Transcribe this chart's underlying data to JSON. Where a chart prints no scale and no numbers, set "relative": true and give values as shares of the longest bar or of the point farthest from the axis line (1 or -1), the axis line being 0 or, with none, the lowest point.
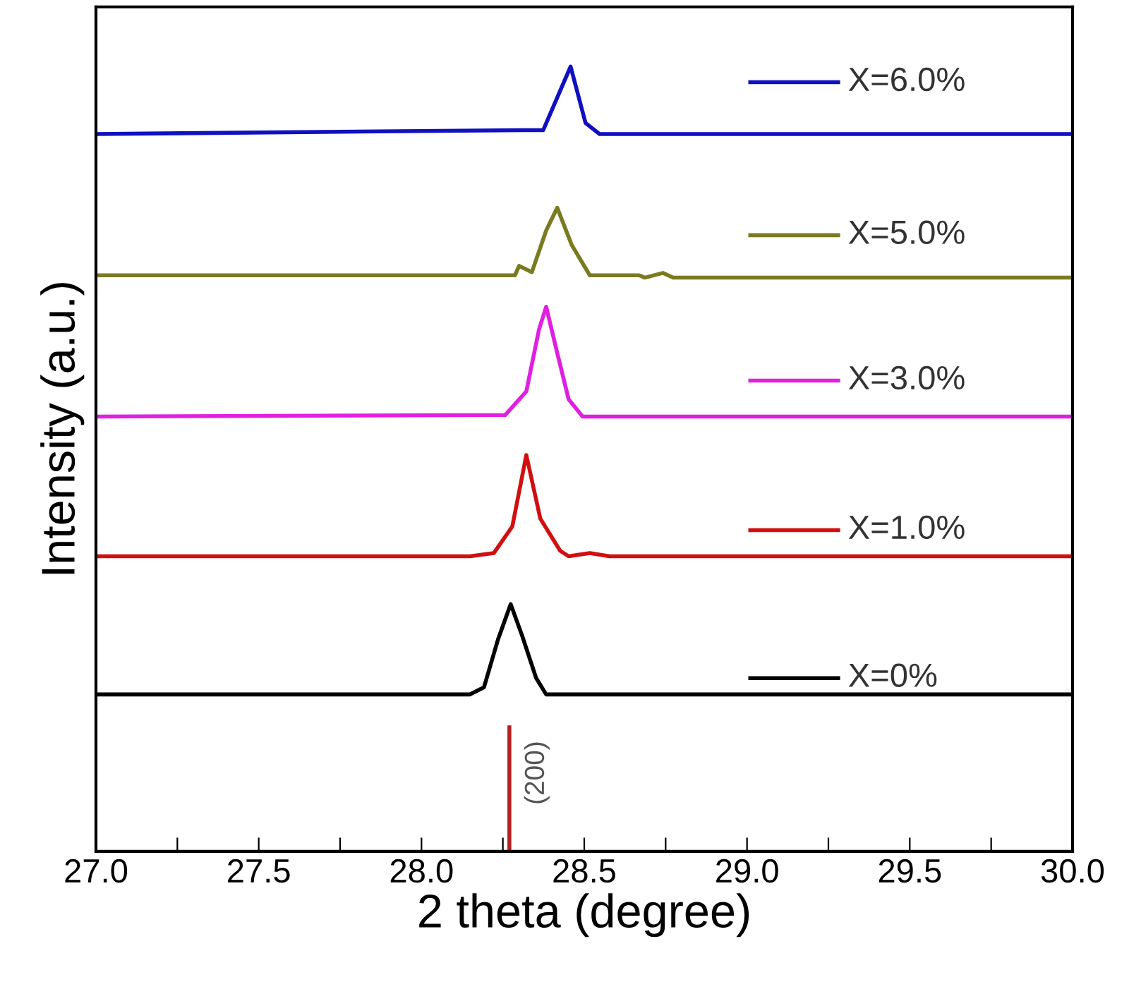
{
  "chart_data": {
    "type": "line",
    "relative": true,
    "xlabel": "2 theta (degree)",
    "ylabel": "Intensity (a.u.)",
    "xlim": [
      27.0,
      30.0
    ],
    "xticks": [
      {
        "value": 27.0,
        "label": "27.0"
      },
      {
        "value": 27.25,
        "label": null
      },
      {
        "value": 27.5,
        "label": "27.5"
      },
      {
        "value": 27.75,
        "label": null
      },
      {
        "value": 28.0,
        "label": "28.0"
      },
      {
        "value": 28.25,
        "label": null
      },
      {
        "value": 28.5,
        "label": "28.5"
      },
      {
        "value": 28.75,
        "label": null
      },
      {
        "value": 29.0,
        "label": "29.0"
      },
      {
        "value": 29.25,
        "label": null
      },
      {
        "value": 29.5,
        "label": "29.5"
      },
      {
        "value": 29.75,
        "label": null
      },
      {
        "value": 30.0,
        "label": "30.0"
      }
    ],
    "tick_labels": "x",
    "grid": false,
    "legend": "right",
    "marker": "none",
    "line_style": "solid",
    "series": [
      {
        "name": "X=0%",
        "color": "#000000",
        "x": [
          27.0,
          28.149,
          28.192,
          28.235,
          28.274,
          28.309,
          28.352,
          28.383,
          30.0
        ],
        "values": [
          0.2,
          0.2,
          0.209,
          0.27,
          0.315,
          0.275,
          0.221,
          0.2,
          0.2
        ]
      },
      {
        "name": "X=1.0%",
        "color": "#d01010",
        "x": [
          27.0,
          28.149,
          28.222,
          28.279,
          28.322,
          28.365,
          28.426,
          28.452,
          28.517,
          28.578,
          30.0
        ],
        "values": [
          0.376,
          0.376,
          0.38,
          0.414,
          0.505,
          0.424,
          0.383,
          0.376,
          0.38,
          0.376,
          0.376
        ]
      },
      {
        "name": "X=3.0%",
        "color": "#e020e0",
        "x": [
          27.0,
          28.257,
          28.322,
          28.361,
          28.383,
          28.417,
          28.452,
          28.495,
          30.0
        ],
        "values": [
          0.554,
          0.556,
          0.586,
          0.665,
          0.694,
          0.635,
          0.576,
          0.554,
          0.554
        ]
      },
      {
        "name": "X=5.0%",
        "color": "#7a7a20",
        "x": [
          27.0,
          28.287,
          28.3,
          28.339,
          28.383,
          28.417,
          28.461,
          28.517,
          28.669,
          28.686,
          28.742,
          28.773,
          30.0
        ],
        "values": [
          0.734,
          0.734,
          0.746,
          0.738,
          0.791,
          0.82,
          0.773,
          0.734,
          0.734,
          0.731,
          0.737,
          0.731,
          0.731
        ]
      },
      {
        "name": "X=6.0%",
        "color": "#1010c0",
        "x": [
          27.0,
          28.313,
          28.374,
          28.458,
          28.504,
          28.547,
          30.0
        ],
        "values": [
          0.914,
          0.919,
          0.919,
          1.0,
          0.928,
          0.914,
          0.914
        ]
      },
      {
        "color": "#b22222",
        "x": [
          28.27,
          28.27
        ],
        "values": [
          0,
          0.158
        ]
      }
    ],
    "annotations": [
      {
        "text": "(200)",
        "x": 28.27,
        "y": 0.1
      }
    ]
  }
}
